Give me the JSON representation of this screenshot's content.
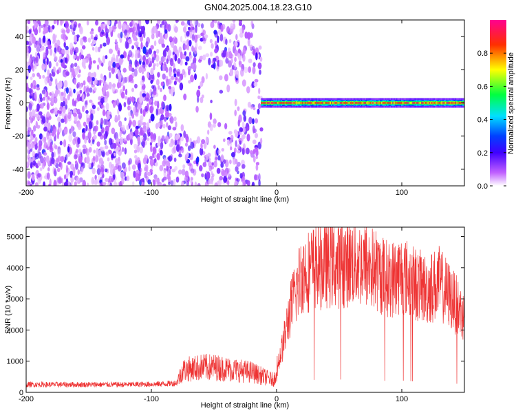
{
  "title": "GN04.2025.004.18.23.G10",
  "chart_data": [
    {
      "type": "heatmap",
      "xlabel": "Height of straight line (km)",
      "ylabel": "Frequency (Hz)",
      "xlim": [
        -200,
        150
      ],
      "ylim": [
        -50,
        50
      ],
      "xticks": [
        -200,
        -100,
        0,
        100
      ],
      "xtick_labels": [
        "-200",
        "-100",
        "0",
        "100"
      ],
      "yticks": [
        -40,
        -20,
        0,
        20,
        40
      ],
      "ytick_labels": [
        "-40",
        "-20",
        "0",
        "20",
        "40"
      ],
      "colorbar": {
        "label": "Normalized spectral amplitude",
        "range": [
          0,
          1
        ],
        "ticks": [
          0,
          0.2,
          0.4,
          0.6,
          0.8
        ],
        "tick_labels": [
          "0.0",
          "0.2",
          "0.4",
          "0.6",
          "0.8"
        ],
        "colors": [
          "#ffffff",
          "#b000ff",
          "#0000ff",
          "#00ffff",
          "#00ff00",
          "#ffff00",
          "#ff0000",
          "#ff00a0"
        ]
      },
      "regions": [
        {
          "x": [
            -200,
            -12
          ],
          "frequency": [
            -50,
            50
          ],
          "pattern": "noise",
          "amplitude": [
            0.0,
            0.25
          ]
        },
        {
          "x": [
            -12,
            150
          ],
          "frequency": [
            -2,
            2
          ],
          "pattern": "carrier",
          "amplitude": [
            0.7,
            0.95
          ]
        }
      ],
      "grid": false
    },
    {
      "type": "line",
      "xlabel": "Height of straight line (km)",
      "ylabel": "SNR (10 * v/v)",
      "xlim": [
        -200,
        150
      ],
      "ylim": [
        0,
        5300
      ],
      "xticks": [
        -200,
        -100,
        0,
        100
      ],
      "xtick_labels": [
        "-200",
        "-100",
        "0",
        "100"
      ],
      "yticks": [
        0,
        1000,
        2000,
        3000,
        4000,
        5000
      ],
      "ytick_labels": [
        "0",
        "1000",
        "2000",
        "3000",
        "4000",
        "5000"
      ],
      "color": "#ee3333",
      "series": [
        {
          "x": [
            -200,
            -180,
            -160,
            -140,
            -120,
            -100,
            -90,
            -80,
            -75,
            -70,
            -60,
            -50,
            -40,
            -30,
            -20,
            -10,
            -2,
            5,
            10,
            15,
            20,
            30,
            40,
            50,
            60,
            70,
            80,
            90,
            100,
            110,
            120,
            130,
            140,
            150
          ],
          "values": [
            250,
            250,
            250,
            250,
            250,
            260,
            270,
            300,
            700,
            750,
            800,
            800,
            750,
            700,
            650,
            500,
            400,
            1500,
            2500,
            3200,
            3800,
            4000,
            4100,
            4100,
            4200,
            4100,
            3900,
            3600,
            3800,
            3500,
            3300,
            3500,
            3000,
            2400
          ]
        }
      ],
      "grid": false
    }
  ]
}
